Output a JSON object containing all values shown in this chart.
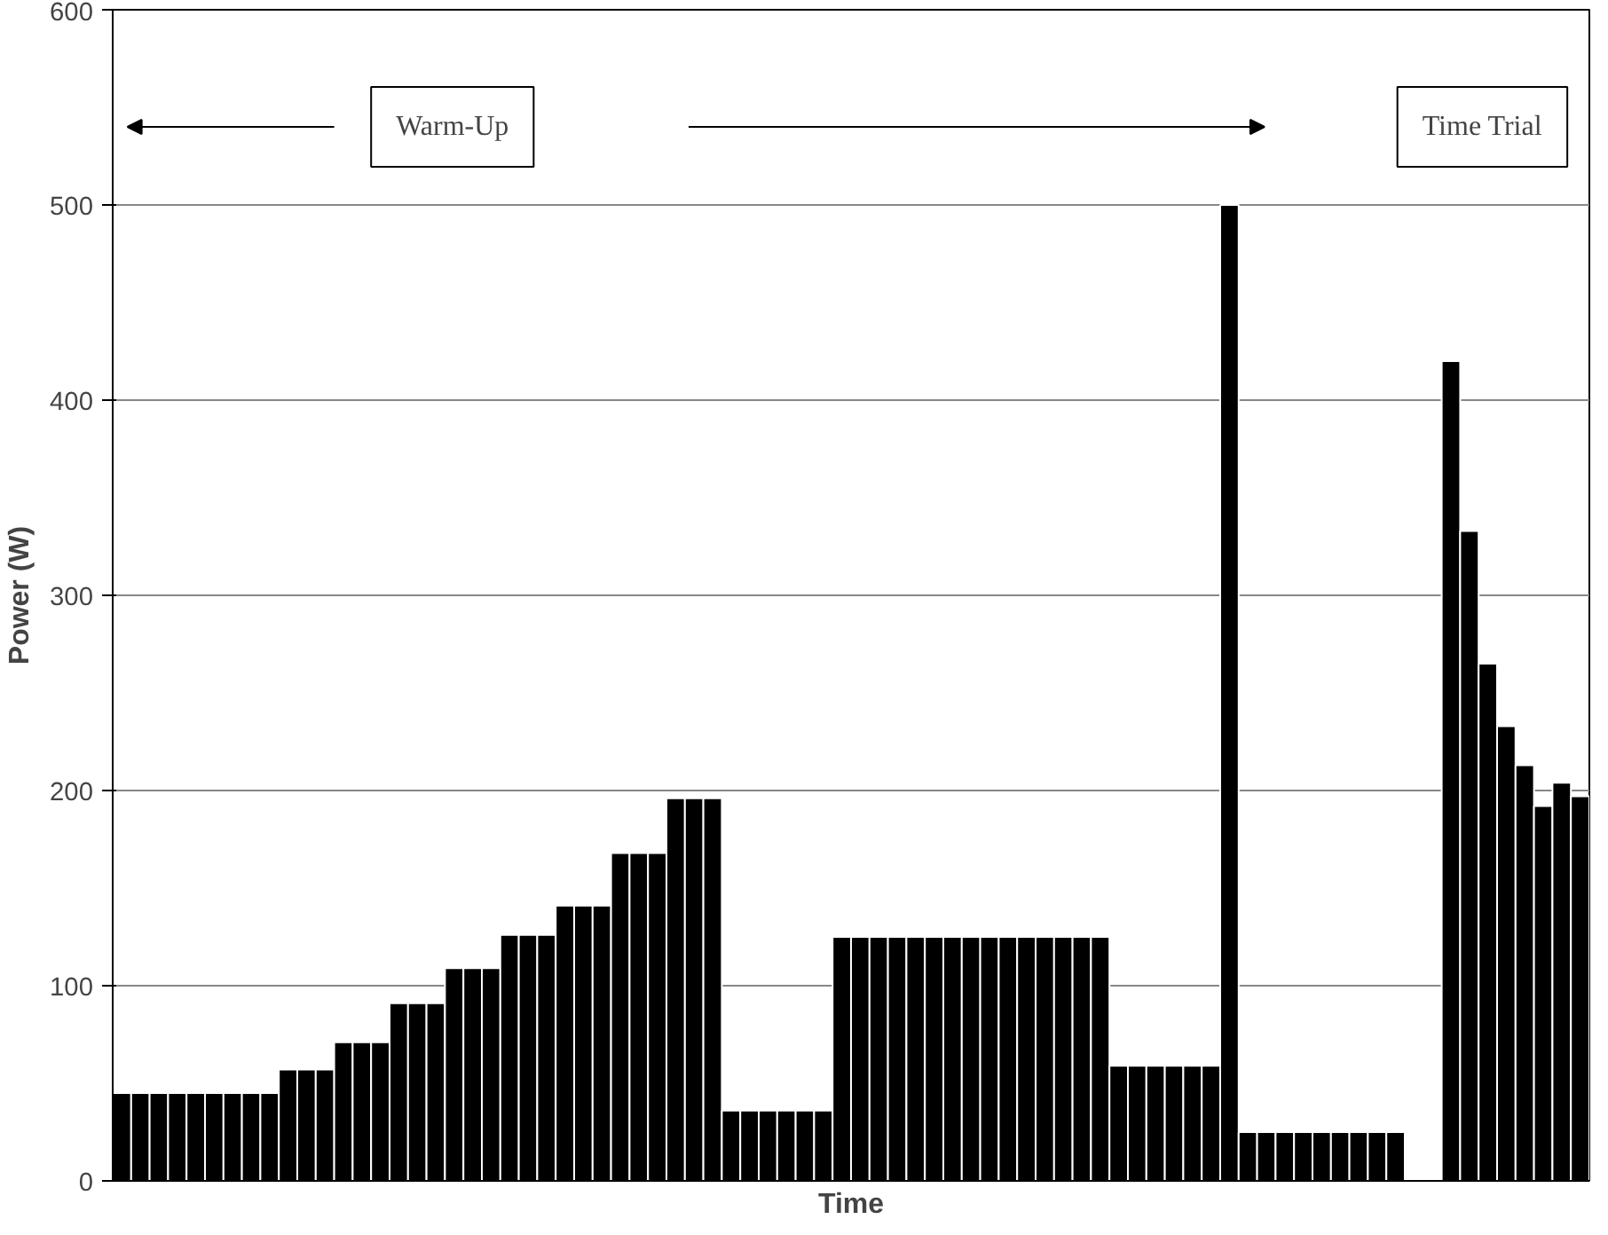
{
  "chart_data": {
    "type": "bar",
    "xlabel": "Time",
    "ylabel": "Power (W)",
    "categories": [
      null,
      null,
      null,
      null,
      null,
      null,
      null,
      null,
      null,
      null,
      null,
      null,
      null,
      null,
      null,
      null,
      null,
      null,
      null,
      null,
      null,
      null,
      null,
      null,
      null,
      null,
      null,
      null,
      null,
      null,
      null,
      null,
      null,
      null,
      null,
      null,
      null,
      null,
      null,
      null,
      null,
      null,
      null,
      null,
      null,
      null,
      null,
      null,
      null,
      null,
      null,
      null,
      null,
      null,
      null,
      null,
      null,
      null,
      null,
      null,
      null,
      null,
      null,
      null,
      null,
      null,
      null,
      null,
      null,
      null,
      null,
      null,
      null,
      null,
      null,
      null,
      null,
      null,
      null,
      null
    ],
    "values": [
      45,
      45,
      45,
      45,
      45,
      45,
      45,
      45,
      45,
      57,
      57,
      57,
      71,
      71,
      71,
      91,
      91,
      91,
      109,
      109,
      109,
      126,
      126,
      126,
      141,
      141,
      141,
      168,
      168,
      168,
      196,
      196,
      196,
      36,
      36,
      36,
      36,
      36,
      36,
      125,
      125,
      125,
      125,
      125,
      125,
      125,
      125,
      125,
      125,
      125,
      125,
      125,
      125,
      125,
      59,
      59,
      59,
      59,
      59,
      59,
      500,
      25,
      25,
      25,
      25,
      25,
      25,
      25,
      25,
      25,
      0,
      0,
      420,
      333,
      265,
      233,
      213,
      192,
      204,
      197
    ],
    "color": "#000000",
    "ylim": [
      0,
      600
    ],
    "yticks": [
      0,
      100,
      200,
      300,
      400,
      500,
      600
    ],
    "grid": "y",
    "tick_labels": "y",
    "annotations": [
      "Warm-Up",
      "Time Trial"
    ]
  }
}
